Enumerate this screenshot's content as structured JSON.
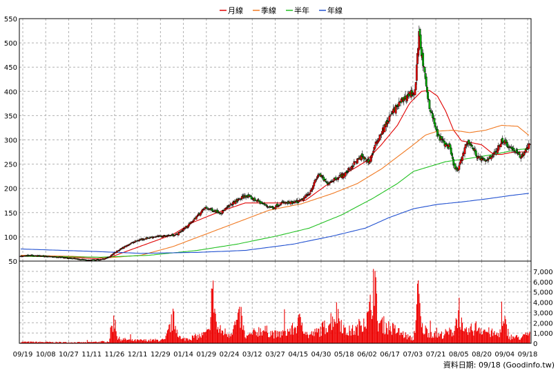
{
  "legend": {
    "items": [
      {
        "label": "月線",
        "color": "#e00000"
      },
      {
        "label": "季線",
        "color": "#f07820"
      },
      {
        "label": "半年",
        "color": "#20c020"
      },
      {
        "label": "年線",
        "color": "#2050d0"
      }
    ]
  },
  "credit": "資料日期: 09/18 (Goodinfo.tw)",
  "chart_data": {
    "type": "candlestick",
    "title": "",
    "x_ticks": [
      "09/19",
      "10/08",
      "10/27",
      "11/11",
      "11/26",
      "12/11",
      "12/29",
      "01/14",
      "01/29",
      "02/24",
      "03/12",
      "03/27",
      "04/15",
      "04/30",
      "05/18",
      "06/02",
      "06/17",
      "07/03",
      "07/21",
      "08/05",
      "08/20",
      "09/04",
      "09/18"
    ],
    "price_axis": {
      "ylim": [
        50,
        550
      ],
      "ticks": [
        50,
        100,
        150,
        200,
        250,
        300,
        350,
        400,
        450,
        500,
        550
      ],
      "position": "left"
    },
    "volume_axis": {
      "ylim": [
        0,
        8000
      ],
      "ticks": [
        0,
        1000,
        2000,
        3000,
        4000,
        5000,
        6000,
        7000
      ],
      "tick_labels": [
        "0",
        "1,000",
        "2,000",
        "3,000",
        "4,000",
        "5,000",
        "6,000",
        "7,000"
      ],
      "position": "right"
    },
    "grid": true,
    "close_anchors": [
      [
        0,
        60
      ],
      [
        10,
        62
      ],
      [
        30,
        60
      ],
      [
        50,
        58
      ],
      [
        70,
        54
      ],
      [
        85,
        52
      ],
      [
        100,
        53
      ],
      [
        110,
        58
      ],
      [
        120,
        70
      ],
      [
        135,
        85
      ],
      [
        150,
        95
      ],
      [
        165,
        100
      ],
      [
        180,
        102
      ],
      [
        195,
        105
      ],
      [
        210,
        125
      ],
      [
        230,
        160
      ],
      [
        250,
        150
      ],
      [
        265,
        170
      ],
      [
        280,
        185
      ],
      [
        295,
        175
      ],
      [
        305,
        165
      ],
      [
        315,
        160
      ],
      [
        325,
        170
      ],
      [
        340,
        170
      ],
      [
        350,
        175
      ],
      [
        360,
        190
      ],
      [
        372,
        230
      ],
      [
        382,
        210
      ],
      [
        392,
        220
      ],
      [
        405,
        230
      ],
      [
        415,
        250
      ],
      [
        425,
        265
      ],
      [
        435,
        255
      ],
      [
        445,
        300
      ],
      [
        455,
        330
      ],
      [
        465,
        360
      ],
      [
        475,
        380
      ],
      [
        485,
        395
      ],
      [
        492,
        400
      ],
      [
        497,
        520
      ],
      [
        500,
        480
      ],
      [
        505,
        420
      ],
      [
        510,
        370
      ],
      [
        515,
        340
      ],
      [
        520,
        310
      ],
      [
        525,
        300
      ],
      [
        530,
        290
      ],
      [
        535,
        285
      ],
      [
        540,
        250
      ],
      [
        545,
        235
      ],
      [
        550,
        260
      ],
      [
        555,
        290
      ],
      [
        560,
        295
      ],
      [
        565,
        280
      ],
      [
        570,
        265
      ],
      [
        575,
        260
      ],
      [
        580,
        255
      ],
      [
        585,
        265
      ],
      [
        590,
        270
      ],
      [
        595,
        280
      ],
      [
        600,
        300
      ],
      [
        605,
        295
      ],
      [
        610,
        285
      ],
      [
        615,
        280
      ],
      [
        620,
        270
      ],
      [
        625,
        265
      ],
      [
        630,
        280
      ],
      [
        635,
        290
      ]
    ],
    "volume_anchors": [
      [
        0,
        150
      ],
      [
        40,
        120
      ],
      [
        80,
        100
      ],
      [
        110,
        200
      ],
      [
        114,
        2100
      ],
      [
        118,
        2500
      ],
      [
        121,
        500
      ],
      [
        140,
        300
      ],
      [
        180,
        350
      ],
      [
        190,
        2600
      ],
      [
        200,
        400
      ],
      [
        225,
        800
      ],
      [
        235,
        1200
      ],
      [
        238,
        5500
      ],
      [
        241,
        4700
      ],
      [
        245,
        1500
      ],
      [
        260,
        1000
      ],
      [
        275,
        2900
      ],
      [
        280,
        600
      ],
      [
        300,
        1500
      ],
      [
        320,
        900
      ],
      [
        340,
        1500
      ],
      [
        350,
        2500
      ],
      [
        358,
        800
      ],
      [
        370,
        1200
      ],
      [
        380,
        1800
      ],
      [
        395,
        3300
      ],
      [
        405,
        1200
      ],
      [
        420,
        1500
      ],
      [
        428,
        2700
      ],
      [
        433,
        2600
      ],
      [
        438,
        4500
      ],
      [
        441,
        8000
      ],
      [
        445,
        2300
      ],
      [
        465,
        1500
      ],
      [
        490,
        400
      ],
      [
        493,
        2700
      ],
      [
        496,
        5500
      ],
      [
        500,
        1600
      ],
      [
        520,
        800
      ],
      [
        540,
        1300
      ],
      [
        547,
        3700
      ],
      [
        552,
        1000
      ],
      [
        570,
        1800
      ],
      [
        583,
        1200
      ],
      [
        595,
        900
      ],
      [
        604,
        2100
      ],
      [
        610,
        700
      ],
      [
        625,
        600
      ],
      [
        635,
        1100
      ]
    ],
    "ma_anchors": {
      "月線": [
        [
          0,
          60
        ],
        [
          50,
          59
        ],
        [
          95,
          55
        ],
        [
          115,
          60
        ],
        [
          140,
          75
        ],
        [
          165,
          90
        ],
        [
          190,
          105
        ],
        [
          215,
          130
        ],
        [
          245,
          150
        ],
        [
          280,
          170
        ],
        [
          310,
          170
        ],
        [
          330,
          170
        ],
        [
          355,
          175
        ],
        [
          380,
          205
        ],
        [
          410,
          235
        ],
        [
          430,
          255
        ],
        [
          450,
          290
        ],
        [
          470,
          330
        ],
        [
          485,
          375
        ],
        [
          500,
          400
        ],
        [
          510,
          402
        ],
        [
          520,
          390
        ],
        [
          530,
          360
        ],
        [
          540,
          320
        ],
        [
          550,
          298
        ],
        [
          560,
          295
        ],
        [
          575,
          290
        ],
        [
          590,
          270
        ],
        [
          600,
          270
        ],
        [
          615,
          275
        ],
        [
          635,
          275
        ]
      ],
      "季線": [
        [
          0,
          62
        ],
        [
          60,
          60
        ],
        [
          110,
          57
        ],
        [
          150,
          62
        ],
        [
          190,
          80
        ],
        [
          230,
          105
        ],
        [
          270,
          130
        ],
        [
          310,
          155
        ],
        [
          350,
          168
        ],
        [
          390,
          190
        ],
        [
          420,
          210
        ],
        [
          450,
          240
        ],
        [
          470,
          265
        ],
        [
          490,
          290
        ],
        [
          505,
          310
        ],
        [
          520,
          318
        ],
        [
          540,
          320
        ],
        [
          560,
          315
        ],
        [
          580,
          320
        ],
        [
          600,
          330
        ],
        [
          620,
          328
        ],
        [
          635,
          308
        ]
      ],
      "半年": [
        [
          0,
          60
        ],
        [
          100,
          58
        ],
        [
          160,
          62
        ],
        [
          220,
          72
        ],
        [
          270,
          85
        ],
        [
          320,
          102
        ],
        [
          360,
          118
        ],
        [
          400,
          145
        ],
        [
          440,
          180
        ],
        [
          470,
          210
        ],
        [
          490,
          235
        ],
        [
          510,
          245
        ],
        [
          530,
          255
        ],
        [
          560,
          262
        ],
        [
          590,
          270
        ],
        [
          620,
          280
        ],
        [
          635,
          282
        ]
      ],
      "年線": [
        [
          0,
          75
        ],
        [
          90,
          70
        ],
        [
          150,
          66
        ],
        [
          220,
          68
        ],
        [
          280,
          72
        ],
        [
          340,
          85
        ],
        [
          390,
          102
        ],
        [
          430,
          118
        ],
        [
          460,
          140
        ],
        [
          490,
          158
        ],
        [
          520,
          167
        ],
        [
          550,
          172
        ],
        [
          580,
          178
        ],
        [
          610,
          185
        ],
        [
          635,
          190
        ]
      ]
    }
  }
}
